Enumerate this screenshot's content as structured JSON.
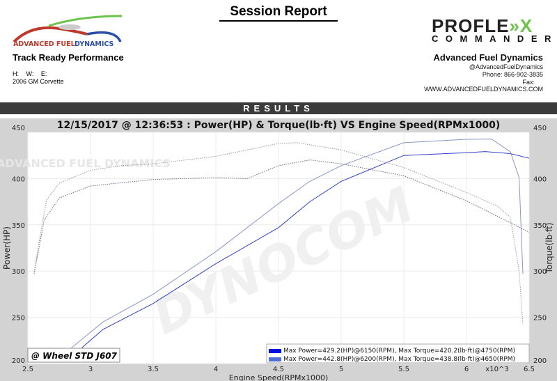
{
  "header": {
    "report_title": "Session Report",
    "logo_left_text": "ADVANCED FUEL DYNAMICS",
    "shop_tagline": "Track Ready Performance",
    "hwe": "H:  W:  E:",
    "vehicle": "2006 GM Corvette",
    "brand_logo": {
      "line1": "PROFLE",
      "line1_accent": "»X",
      "line2": "COMMANDER"
    },
    "company": "Advanced Fuel Dynamics",
    "social": "@AdvancedFuelDynamics",
    "phone": "Phone: 866-902-3835",
    "fax": "Fax:",
    "website": "WWW.ADVANCEDFUELDYNAMICS.COM"
  },
  "results_label": "RESULTS",
  "colors": {
    "accent_green": "#6cc24a",
    "run1": "#3040c8",
    "run2": "#8a96c8",
    "legend_run1": "#0010e0",
    "legend_run2": "#5070d8",
    "chart_bg": "#d3d3d3"
  },
  "watermarks": {
    "center": "DYNOCOM",
    "logo": "ADVANCED FUEL DYNAMICS"
  },
  "chart_data": {
    "type": "line",
    "title": "12/15/2017 @ 12:36:53 : Power(HP) & Torque(lb·ft) VS Engine Speed(RPMx1000)",
    "xlabel": "Engine Speed(RPMx1000)",
    "x_multiplier_label": "x10^3",
    "ylabel_left": "Power(HP)",
    "ylabel_right": "Torque(lb·ft)",
    "xlim": [
      2.5,
      6.5
    ],
    "ylim": [
      200,
      450
    ],
    "x_ticks": [
      "2.5",
      "3",
      "3.5",
      "4",
      "4.5",
      "5",
      "5.5",
      "6",
      "6.5"
    ],
    "y_ticks": [
      "200",
      "250",
      "300",
      "350",
      "400",
      "450"
    ],
    "grid": true,
    "correction_label": "@ Wheel STD J607",
    "legend_position": "bottom-right",
    "legend": [
      "Max Power=429.2(HP)@6150(RPM), Max Torque=420.2(lb·ft)@4750(RPM)",
      "Max Power=442.8(HP)@6200(RPM), Max Torque=438.8(lb·ft)@4650(RPM)"
    ],
    "series": [
      {
        "run": 1,
        "quantity": "power",
        "style": "solid",
        "x": [
          2.93,
          3.1,
          3.5,
          4.0,
          4.5,
          4.75,
          5.0,
          5.5,
          6.0,
          6.15,
          6.35,
          6.5
        ],
        "y": [
          217,
          237,
          265,
          308,
          347,
          375,
          397,
          425,
          428,
          429.2,
          427,
          422
        ]
      },
      {
        "run": 2,
        "quantity": "power",
        "style": "solid",
        "x": [
          2.83,
          3.1,
          3.5,
          4.0,
          4.5,
          4.75,
          5.0,
          5.5,
          6.0,
          6.2,
          6.35,
          6.42,
          6.45
        ],
        "y": [
          215,
          245,
          275,
          321,
          373,
          397,
          414,
          438.8,
          442.5,
          442.8,
          429,
          401,
          297
        ]
      },
      {
        "run": 1,
        "quantity": "torque",
        "style": "dotted",
        "x": [
          2.55,
          2.63,
          2.75,
          3.0,
          3.5,
          4.0,
          4.25,
          4.5,
          4.75,
          5.0,
          5.5,
          6.0,
          6.5
        ],
        "y": [
          297,
          355,
          379,
          392,
          399,
          401,
          400,
          414,
          420.2,
          416,
          403,
          376,
          342
        ]
      },
      {
        "run": 2,
        "quantity": "torque",
        "style": "dotted",
        "x": [
          2.55,
          2.6,
          2.65,
          2.75,
          3.0,
          3.25,
          3.5,
          4.0,
          4.5,
          4.65,
          5.0,
          5.5,
          6.0,
          6.25,
          6.35,
          6.42,
          6.45
        ],
        "y": [
          299,
          340,
          377,
          395,
          409,
          414,
          416,
          424,
          438,
          438.8,
          431,
          412,
          385,
          370,
          358,
          300,
          242
        ]
      }
    ]
  }
}
